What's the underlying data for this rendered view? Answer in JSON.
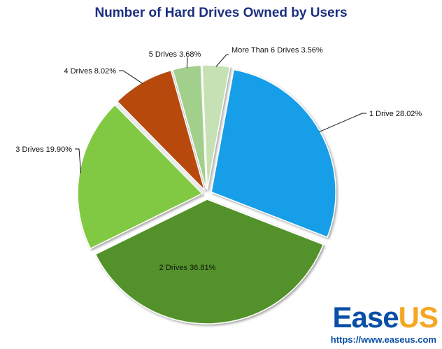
{
  "chart_data": {
    "type": "pie",
    "title": "Number of Hard Drives Owned by Users",
    "slices": [
      {
        "name": "1 Drive",
        "value": 28.02,
        "label": "1 Drive 28.02%",
        "color": "#159ee9",
        "exploded": true
      },
      {
        "name": "2 Drives",
        "value": 36.81,
        "label": "2 Drives 36.81%",
        "color": "#52922a",
        "exploded": true
      },
      {
        "name": "3 Drives",
        "value": 19.9,
        "label": "3 Drives 19.90%",
        "color": "#81c942",
        "exploded": true
      },
      {
        "name": "4 Drives",
        "value": 8.02,
        "label": "4 Drives 8.02%",
        "color": "#b84a10",
        "exploded": true
      },
      {
        "name": "5 Drives",
        "value": 3.68,
        "label": "5 Drives 3.68%",
        "color": "#a3cf8c",
        "exploded": true
      },
      {
        "name": "More Than 6 Drives",
        "value": 3.56,
        "label": "More Than 6 Drives 3.56%",
        "color": "#c6e2b4",
        "exploded": true
      }
    ]
  },
  "brand": {
    "logo_part1": "Ease",
    "logo_part2": "US",
    "url": "https://www.easeus.com"
  }
}
